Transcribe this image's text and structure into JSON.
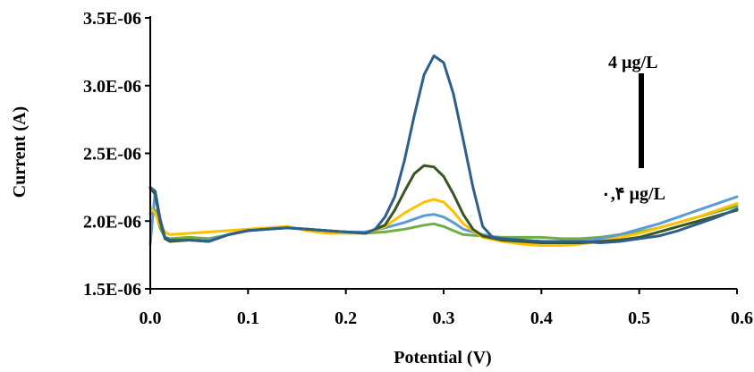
{
  "chart_data": {
    "type": "line",
    "title": "",
    "xlabel": "Potential (V)",
    "ylabel": "Current (A)",
    "xlim": [
      0.0,
      0.6
    ],
    "ylim": [
      1.5e-06,
      3.5e-06
    ],
    "x_ticks": [
      0.0,
      0.1,
      0.2,
      0.3,
      0.4,
      0.5,
      0.6
    ],
    "x_tick_labels": [
      "0.0",
      "0.1",
      "0.2",
      "0.3",
      "0.4",
      "0.5",
      "0.6"
    ],
    "y_ticks": [
      1.5e-06,
      2e-06,
      2.5e-06,
      3e-06,
      3.5e-06
    ],
    "y_tick_labels": [
      "1.5E-06",
      "2.0E-06",
      "2.5E-06",
      "3.0E-06",
      "3.5E-06"
    ],
    "grid": false,
    "annotations": {
      "top_label": "4 µg/L",
      "bottom_label": "۰,۴ µg/L"
    },
    "series": [
      {
        "color": "#70ad47",
        "x": [
          0.0,
          0.005,
          0.01,
          0.015,
          0.02,
          0.04,
          0.06,
          0.08,
          0.1,
          0.12,
          0.14,
          0.16,
          0.18,
          0.2,
          0.22,
          0.24,
          0.26,
          0.28,
          0.29,
          0.3,
          0.31,
          0.32,
          0.34,
          0.36,
          0.38,
          0.4,
          0.42,
          0.44,
          0.46,
          0.48,
          0.5,
          0.52,
          0.54,
          0.56,
          0.58,
          0.6
        ],
        "y": [
          2.05e-06,
          2.08e-06,
          1.95e-06,
          1.88e-06,
          1.87e-06,
          1.88e-06,
          1.87e-06,
          1.9e-06,
          1.93e-06,
          1.94e-06,
          1.95e-06,
          1.94e-06,
          1.93e-06,
          1.92e-06,
          1.91e-06,
          1.92e-06,
          1.94e-06,
          1.97e-06,
          1.98e-06,
          1.96e-06,
          1.93e-06,
          1.9e-06,
          1.89e-06,
          1.88e-06,
          1.88e-06,
          1.88e-06,
          1.87e-06,
          1.87e-06,
          1.88e-06,
          1.9e-06,
          1.92e-06,
          1.95e-06,
          1.99e-06,
          2.03e-06,
          2.07e-06,
          2.11e-06
        ]
      },
      {
        "color": "#5b9bd5",
        "x": [
          0.0,
          0.005,
          0.01,
          0.015,
          0.02,
          0.04,
          0.06,
          0.08,
          0.1,
          0.12,
          0.14,
          0.16,
          0.18,
          0.2,
          0.22,
          0.24,
          0.26,
          0.28,
          0.29,
          0.3,
          0.31,
          0.32,
          0.34,
          0.36,
          0.38,
          0.4,
          0.42,
          0.44,
          0.46,
          0.48,
          0.5,
          0.52,
          0.54,
          0.56,
          0.58,
          0.6
        ],
        "y": [
          1.83e-06,
          2.22e-06,
          2e-06,
          1.88e-06,
          1.86e-06,
          1.86e-06,
          1.86e-06,
          1.9e-06,
          1.93e-06,
          1.94e-06,
          1.95e-06,
          1.94e-06,
          1.93e-06,
          1.92e-06,
          1.92e-06,
          1.95e-06,
          1.99e-06,
          2.04e-06,
          2.05e-06,
          2.03e-06,
          1.99e-06,
          1.94e-06,
          1.9e-06,
          1.87e-06,
          1.86e-06,
          1.85e-06,
          1.84e-06,
          1.85e-06,
          1.87e-06,
          1.9e-06,
          1.94e-06,
          1.98e-06,
          2.03e-06,
          2.08e-06,
          2.13e-06,
          2.18e-06
        ]
      },
      {
        "color": "#ffc000",
        "x": [
          0.0,
          0.005,
          0.01,
          0.015,
          0.02,
          0.04,
          0.06,
          0.08,
          0.1,
          0.12,
          0.14,
          0.16,
          0.18,
          0.2,
          0.22,
          0.24,
          0.26,
          0.28,
          0.29,
          0.3,
          0.31,
          0.32,
          0.34,
          0.36,
          0.38,
          0.4,
          0.42,
          0.44,
          0.46,
          0.48,
          0.5,
          0.52,
          0.54,
          0.56,
          0.58,
          0.6
        ],
        "y": [
          2.1e-06,
          2.06e-06,
          1.97e-06,
          1.92e-06,
          1.9e-06,
          1.91e-06,
          1.92e-06,
          1.93e-06,
          1.94e-06,
          1.95e-06,
          1.96e-06,
          1.93e-06,
          1.91e-06,
          1.91e-06,
          1.91e-06,
          1.96e-06,
          2.06e-06,
          2.14e-06,
          2.16e-06,
          2.14e-06,
          2.07e-06,
          1.98e-06,
          1.88e-06,
          1.85e-06,
          1.83e-06,
          1.82e-06,
          1.82e-06,
          1.83e-06,
          1.85e-06,
          1.88e-06,
          1.91e-06,
          1.95e-06,
          1.99e-06,
          2.03e-06,
          2.08e-06,
          2.13e-06
        ]
      },
      {
        "color": "#375623",
        "x": [
          0.0,
          0.005,
          0.01,
          0.015,
          0.02,
          0.04,
          0.06,
          0.08,
          0.1,
          0.12,
          0.14,
          0.16,
          0.18,
          0.2,
          0.22,
          0.24,
          0.25,
          0.26,
          0.27,
          0.28,
          0.29,
          0.3,
          0.31,
          0.32,
          0.33,
          0.34,
          0.36,
          0.38,
          0.4,
          0.42,
          0.44,
          0.46,
          0.48,
          0.5,
          0.52,
          0.54,
          0.56,
          0.58,
          0.6
        ],
        "y": [
          2.24e-06,
          2.2e-06,
          2e-06,
          1.87e-06,
          1.85e-06,
          1.86e-06,
          1.85e-06,
          1.9e-06,
          1.93e-06,
          1.94e-06,
          1.95e-06,
          1.94e-06,
          1.93e-06,
          1.92e-06,
          1.91e-06,
          1.97e-06,
          2.08e-06,
          2.22e-06,
          2.35e-06,
          2.41e-06,
          2.4e-06,
          2.33e-06,
          2.2e-06,
          2.05e-06,
          1.94e-06,
          1.89e-06,
          1.86e-06,
          1.85e-06,
          1.84e-06,
          1.84e-06,
          1.84e-06,
          1.85e-06,
          1.86e-06,
          1.88e-06,
          1.92e-06,
          1.96e-06,
          2e-06,
          2.04e-06,
          2.08e-06
        ]
      },
      {
        "color": "#2e5f8a",
        "x": [
          0.0,
          0.005,
          0.01,
          0.015,
          0.02,
          0.04,
          0.06,
          0.08,
          0.1,
          0.12,
          0.14,
          0.16,
          0.18,
          0.2,
          0.22,
          0.23,
          0.24,
          0.25,
          0.26,
          0.27,
          0.28,
          0.29,
          0.3,
          0.31,
          0.32,
          0.33,
          0.34,
          0.35,
          0.36,
          0.38,
          0.4,
          0.42,
          0.44,
          0.46,
          0.48,
          0.5,
          0.52,
          0.54,
          0.56,
          0.58,
          0.6
        ],
        "y": [
          2.25e-06,
          2.22e-06,
          2.02e-06,
          1.88e-06,
          1.86e-06,
          1.86e-06,
          1.85e-06,
          1.9e-06,
          1.93e-06,
          1.94e-06,
          1.95e-06,
          1.94e-06,
          1.93e-06,
          1.92e-06,
          1.91e-06,
          1.94e-06,
          2.03e-06,
          2.18e-06,
          2.45e-06,
          2.78e-06,
          3.08e-06,
          3.22e-06,
          3.17e-06,
          2.94e-06,
          2.6e-06,
          2.25e-06,
          1.96e-06,
          1.88e-06,
          1.87e-06,
          1.86e-06,
          1.85e-06,
          1.85e-06,
          1.85e-06,
          1.84e-06,
          1.85e-06,
          1.87e-06,
          1.89e-06,
          1.93e-06,
          1.98e-06,
          2.03e-06,
          2.09e-06
        ]
      }
    ]
  }
}
